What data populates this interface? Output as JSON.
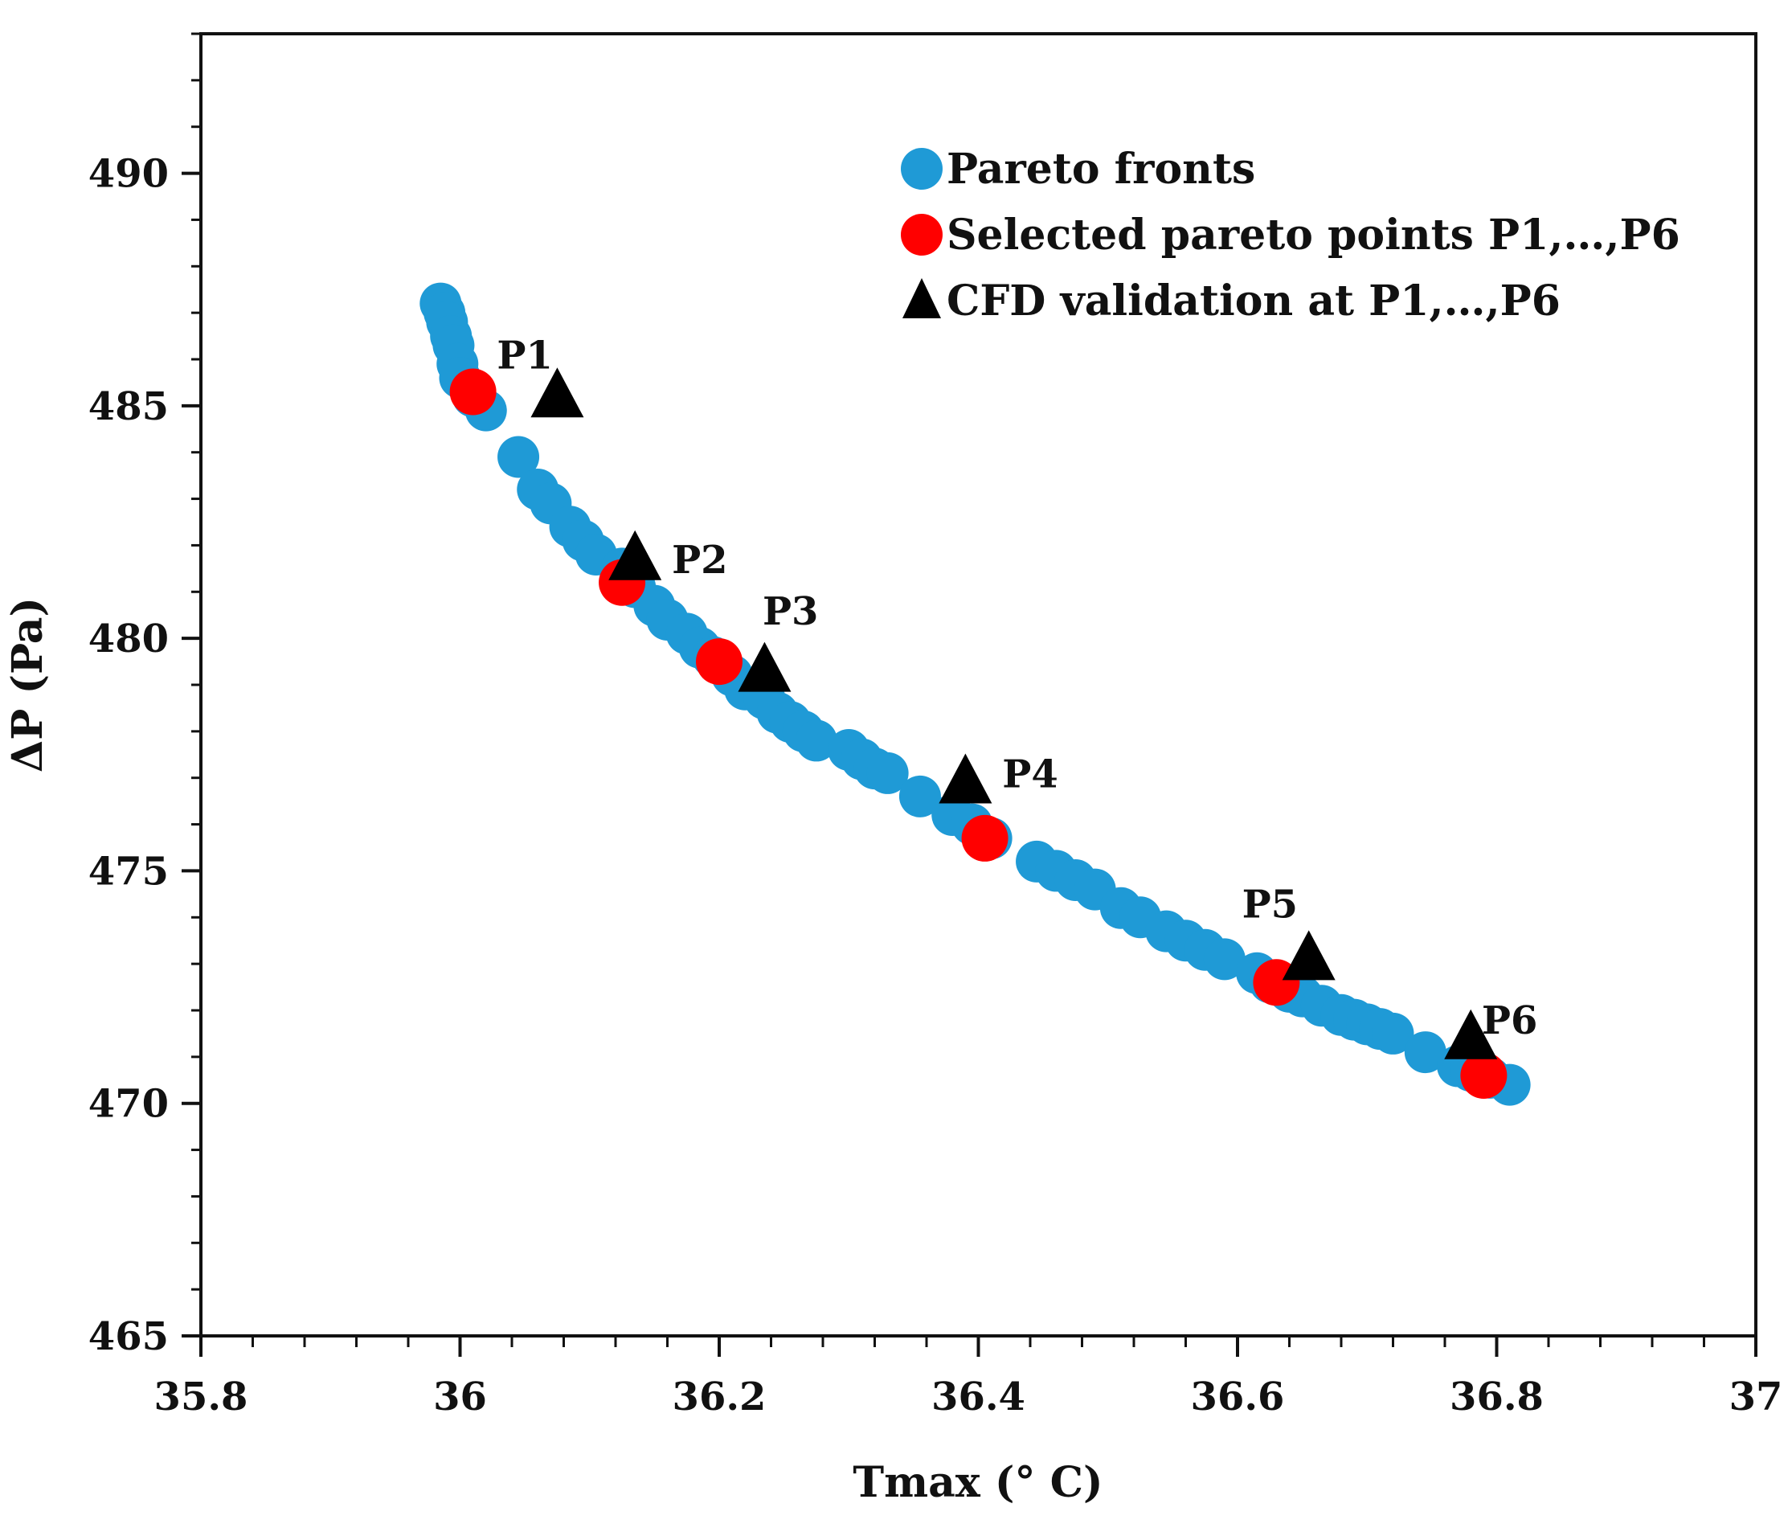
{
  "chart_data": {
    "type": "scatter",
    "xlabel": "Tmax (° C)",
    "ylabel": "ΔP (Pa)",
    "xlim": [
      35.8,
      37
    ],
    "ylim": [
      465,
      493
    ],
    "xticks": [
      35.8,
      36,
      36.2,
      36.4,
      36.6,
      36.8,
      37
    ],
    "xtick_labels": [
      "35.8",
      "36",
      "36.2",
      "36.4",
      "36.6",
      "36.8",
      "37"
    ],
    "yticks": [
      465,
      470,
      475,
      480,
      485,
      490
    ],
    "ytick_labels": [
      "465",
      "470",
      "475",
      "480",
      "485",
      "490"
    ],
    "legend_position": "top-right",
    "series": [
      {
        "name": "Pareto fronts",
        "marker": "circle",
        "color": "#1f9ad6",
        "x": [
          35.985,
          35.988,
          35.99,
          35.993,
          35.995,
          35.998,
          36.0,
          36.01,
          36.02,
          36.045,
          36.06,
          36.07,
          36.085,
          36.095,
          36.105,
          36.125,
          36.135,
          36.15,
          36.16,
          36.175,
          36.185,
          36.195,
          36.21,
          36.22,
          36.235,
          36.245,
          36.255,
          36.265,
          36.275,
          36.3,
          36.31,
          36.32,
          36.33,
          36.355,
          36.38,
          36.395,
          36.41,
          36.445,
          36.46,
          36.475,
          36.49,
          36.51,
          36.525,
          36.545,
          36.56,
          36.575,
          36.59,
          36.615,
          36.625,
          36.64,
          36.65,
          36.665,
          36.68,
          36.69,
          36.7,
          36.71,
          36.72,
          36.745,
          36.77,
          36.78,
          36.795,
          36.81
        ],
        "y": [
          487.2,
          487.0,
          486.8,
          486.5,
          486.3,
          485.9,
          485.6,
          485.2,
          484.9,
          483.9,
          483.2,
          482.9,
          482.4,
          482.1,
          481.8,
          481.5,
          481.1,
          480.7,
          480.4,
          480.1,
          479.8,
          479.6,
          479.2,
          478.9,
          478.7,
          478.4,
          478.2,
          478.0,
          477.8,
          477.6,
          477.4,
          477.2,
          477.1,
          476.6,
          476.2,
          476.0,
          475.7,
          475.2,
          475.0,
          474.8,
          474.6,
          474.2,
          474.0,
          473.7,
          473.5,
          473.3,
          473.1,
          472.8,
          472.6,
          472.4,
          472.3,
          472.1,
          471.9,
          471.8,
          471.7,
          471.6,
          471.5,
          471.1,
          470.8,
          470.7,
          470.55,
          470.4
        ]
      },
      {
        "name": "Selected pareto points P1,…,P6",
        "marker": "circle",
        "color": "#ff0000",
        "x": [
          36.01,
          36.125,
          36.2,
          36.405,
          36.63,
          36.79
        ],
        "y": [
          485.3,
          481.2,
          479.5,
          475.7,
          472.6,
          470.6
        ],
        "labels": [
          "P1",
          "P2",
          "P3",
          "P4",
          "P5",
          "P6"
        ]
      },
      {
        "name": "CFD validation at P1,…,P6",
        "marker": "triangle",
        "color": "#000000",
        "x": [
          36.075,
          36.135,
          36.235,
          36.39,
          36.655,
          36.78
        ],
        "y": [
          485.2,
          481.7,
          479.3,
          476.9,
          473.1,
          471.4
        ]
      }
    ],
    "annotations": [
      {
        "text": "P1",
        "x": 36.05,
        "y": 485.8
      },
      {
        "text": "P2",
        "x": 36.185,
        "y": 481.4
      },
      {
        "text": "P3",
        "x": 36.255,
        "y": 480.3
      },
      {
        "text": "P4",
        "x": 36.44,
        "y": 476.8
      },
      {
        "text": "P5",
        "x": 36.625,
        "y": 474.0
      },
      {
        "text": "P6",
        "x": 36.81,
        "y": 471.5
      }
    ]
  }
}
